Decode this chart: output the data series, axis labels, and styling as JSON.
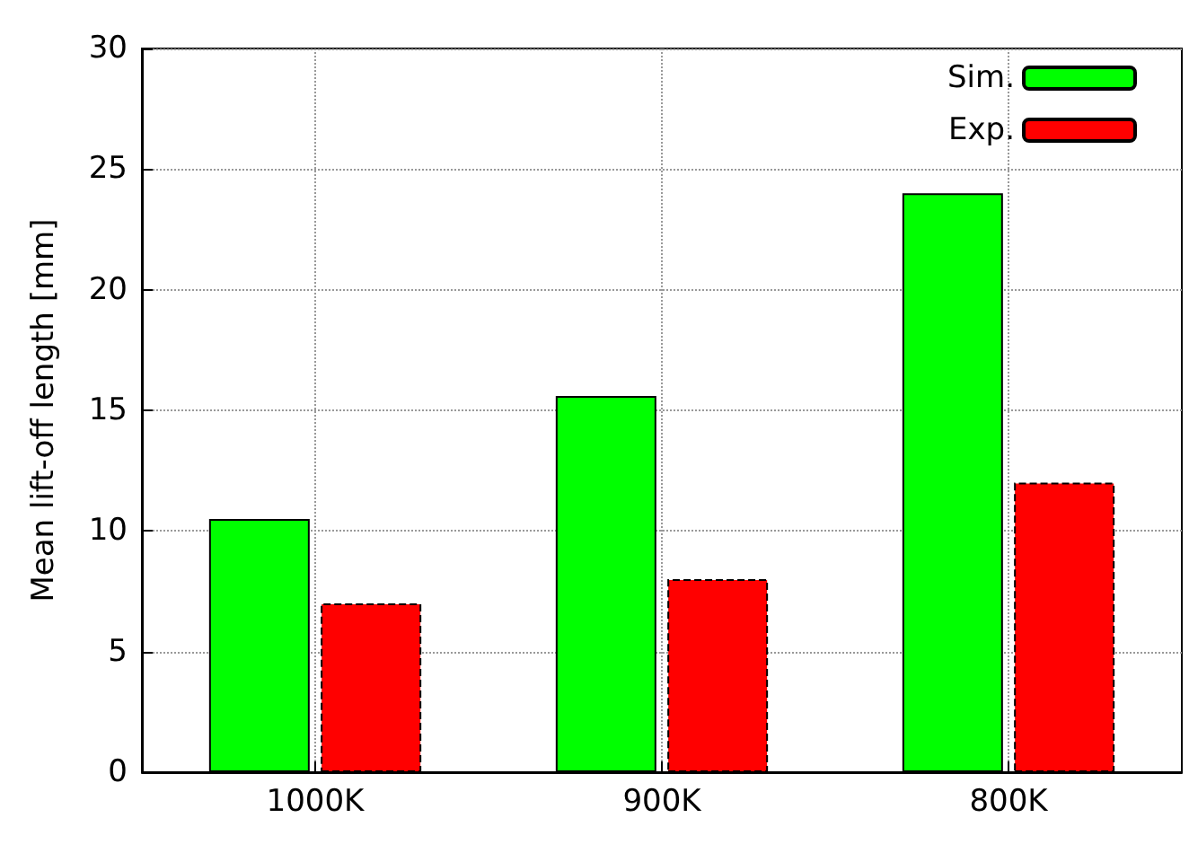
{
  "chart_data": {
    "type": "bar",
    "ylabel": "Mean lift-off length [mm]",
    "categories": [
      "1000K",
      "900K",
      "800K"
    ],
    "series": [
      {
        "name": "Sim.",
        "color": "#00ff00",
        "values": [
          10.5,
          15.6,
          24
        ]
      },
      {
        "name": "Exp.",
        "color": "#ff0000",
        "values": [
          7,
          8,
          12
        ]
      }
    ],
    "ylim": [
      0,
      30
    ],
    "yticks": [
      0,
      5,
      10,
      15,
      20,
      25,
      30
    ],
    "grid": true,
    "legend": "top right"
  }
}
